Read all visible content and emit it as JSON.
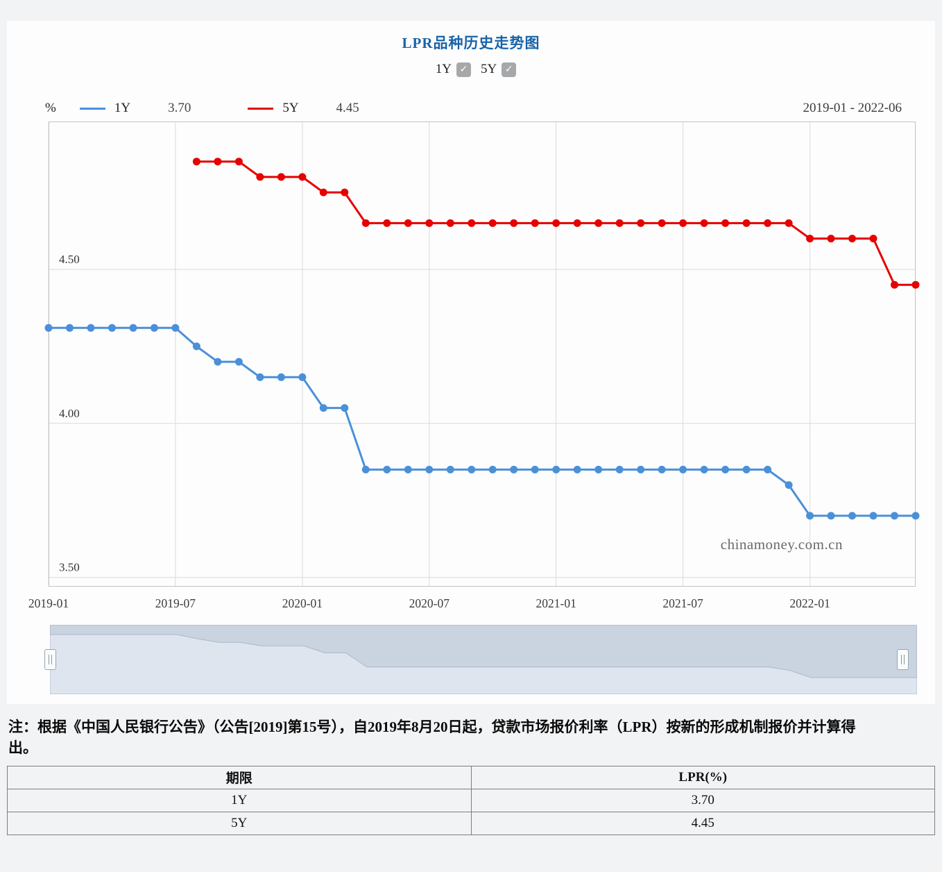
{
  "controls": {
    "toggles": [
      {
        "label": "1Y",
        "checked": true
      },
      {
        "label": "5Y",
        "checked": true
      }
    ]
  },
  "watermark": "chinamoney.com.cn",
  "chart_data": {
    "type": "line",
    "title": "LPR品种历史走势图",
    "unit": "%",
    "date_range": "2019-01 - 2022-06",
    "x": [
      "2019-01",
      "2019-02",
      "2019-03",
      "2019-04",
      "2019-05",
      "2019-06",
      "2019-07",
      "2019-08",
      "2019-09",
      "2019-10",
      "2019-11",
      "2019-12",
      "2020-01",
      "2020-02",
      "2020-03",
      "2020-04",
      "2020-05",
      "2020-06",
      "2020-07",
      "2020-08",
      "2020-09",
      "2020-10",
      "2020-11",
      "2020-12",
      "2021-01",
      "2021-02",
      "2021-03",
      "2021-04",
      "2021-05",
      "2021-06",
      "2021-07",
      "2021-08",
      "2021-09",
      "2021-10",
      "2021-11",
      "2021-12",
      "2022-01",
      "2022-02",
      "2022-03",
      "2022-04",
      "2022-05",
      "2022-06"
    ],
    "series": [
      {
        "name": "1Y",
        "latest": "3.70",
        "color": "#4a90d9",
        "values": [
          4.31,
          4.31,
          4.31,
          4.31,
          4.31,
          4.31,
          4.31,
          4.25,
          4.2,
          4.2,
          4.15,
          4.15,
          4.15,
          4.05,
          4.05,
          3.85,
          3.85,
          3.85,
          3.85,
          3.85,
          3.85,
          3.85,
          3.85,
          3.85,
          3.85,
          3.85,
          3.85,
          3.85,
          3.85,
          3.85,
          3.85,
          3.85,
          3.85,
          3.85,
          3.85,
          3.8,
          3.7,
          3.7,
          3.7,
          3.7,
          3.7,
          3.7
        ]
      },
      {
        "name": "5Y",
        "latest": "4.45",
        "color": "#e60000",
        "values": [
          null,
          null,
          null,
          null,
          null,
          null,
          null,
          4.85,
          4.85,
          4.85,
          4.8,
          4.8,
          4.8,
          4.75,
          4.75,
          4.65,
          4.65,
          4.65,
          4.65,
          4.65,
          4.65,
          4.65,
          4.65,
          4.65,
          4.65,
          4.65,
          4.65,
          4.65,
          4.65,
          4.65,
          4.65,
          4.65,
          4.65,
          4.65,
          4.65,
          4.65,
          4.6,
          4.6,
          4.6,
          4.6,
          4.45,
          4.45
        ]
      }
    ],
    "yticks": [
      4.5,
      4.0,
      3.5
    ],
    "xticks": [
      "2019-01",
      "2019-07",
      "2020-01",
      "2020-07",
      "2021-01",
      "2021-07",
      "2022-01"
    ],
    "ylim": [
      3.47,
      4.98
    ],
    "legend_position": "top",
    "grid": true
  },
  "note": {
    "text": "注：根据《中国人民银行公告》（公告[2019]第15号），自2019年8月20日起，贷款市场报价利率（LPR）按新的形成机制报价并计算得出。"
  },
  "table": {
    "headers": [
      "期限",
      "LPR(%)"
    ],
    "rows": [
      {
        "term": "1Y",
        "value": "3.70"
      },
      {
        "term": "5Y",
        "value": "4.45"
      }
    ]
  }
}
